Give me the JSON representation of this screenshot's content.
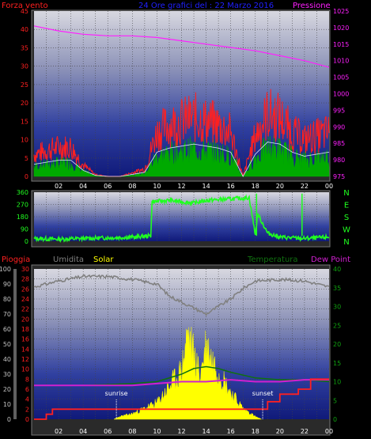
{
  "header": {
    "top_left": "Forza vento",
    "top_center": "24 Ore grafici del : 22 Marzo 2016",
    "top_right": "Pressione",
    "bottom_left": "Pioggia",
    "bottom_umidita": "Umidita",
    "bottom_solar": "Solar",
    "bottom_temp": "Temperatura",
    "bottom_dew": "Dew Point"
  },
  "colors": {
    "wind": "#ff2020",
    "pressure": "#ff20ff",
    "gust_green": "#00aa00",
    "direction": "#20ff20",
    "rain": "#ff2020",
    "humidity": "#808080",
    "solar": "#ffff00",
    "temp": "#107010",
    "dew": "#d020d0",
    "header_blue": "#2020ff"
  },
  "chart_data": [
    {
      "type": "line",
      "name": "wind_pressure",
      "categories": [
        "02",
        "04",
        "06",
        "08",
        "10",
        "12",
        "14",
        "16",
        "18",
        "20",
        "22",
        "00"
      ],
      "y_left_ticks": [
        "0",
        "5",
        "10",
        "15",
        "20",
        "25",
        "30",
        "35",
        "40",
        "45"
      ],
      "y_right_ticks": [
        "975",
        "980",
        "985",
        "990",
        "995",
        "1000",
        "1005",
        "1010",
        "1015",
        "1020",
        "1025"
      ],
      "ylim_left": [
        0,
        45
      ],
      "ylim_right": [
        975,
        1025
      ],
      "series": [
        {
          "name": "Pressione",
          "x": [
            0,
            2,
            4,
            6,
            8,
            10,
            12,
            14,
            16,
            18,
            20,
            22,
            24
          ],
          "values": [
            1020.5,
            1019,
            1018,
            1017.5,
            1017.5,
            1017,
            1016,
            1015,
            1014,
            1013,
            1011.5,
            1010,
            1008
          ]
        },
        {
          "name": "Forza vento",
          "x": [
            0,
            1,
            2,
            3,
            4,
            5,
            6,
            7,
            8,
            9,
            10,
            11,
            12,
            13,
            14,
            15,
            16,
            17,
            18,
            19,
            20,
            21,
            22,
            23,
            24
          ],
          "values": [
            6,
            7,
            8,
            8,
            3,
            0.5,
            0,
            0,
            1,
            2,
            12,
            14,
            15,
            16,
            15,
            14,
            12,
            0,
            11,
            17,
            16,
            12,
            10,
            11,
            12
          ]
        }
      ]
    },
    {
      "type": "line",
      "name": "wind_direction",
      "categories": [
        "02",
        "04",
        "06",
        "08",
        "10",
        "12",
        "14",
        "16",
        "18",
        "20",
        "22",
        "00"
      ],
      "y_left_ticks": [
        "0",
        "90",
        "180",
        "270",
        "360"
      ],
      "y_right_ticks": [
        "N",
        "W",
        "S",
        "E",
        "N"
      ],
      "ylim": [
        0,
        360
      ],
      "series": [
        {
          "name": "direction",
          "x": [
            0,
            2,
            4,
            6,
            8,
            9.5,
            9.6,
            11,
            13,
            14,
            16,
            17.5,
            18,
            18.2,
            19,
            20,
            22,
            24
          ],
          "values": [
            20,
            15,
            20,
            25,
            30,
            40,
            290,
            300,
            280,
            300,
            310,
            320,
            50,
            200,
            60,
            30,
            20,
            30
          ]
        }
      ]
    },
    {
      "type": "line",
      "name": "rain_temp_solar",
      "categories": [
        "02",
        "04",
        "06",
        "08",
        "10",
        "12",
        "14",
        "16",
        "18",
        "20",
        "22",
        "00"
      ],
      "y_far_left_ticks": [
        "0",
        "10",
        "20",
        "30",
        "40",
        "50",
        "60",
        "70",
        "80",
        "90",
        "100"
      ],
      "y_left_ticks": [
        "0",
        "2",
        "4",
        "6",
        "8",
        "10",
        "12",
        "14",
        "16",
        "18",
        "20",
        "22",
        "24",
        "26",
        "28",
        "30"
      ],
      "y_right_ticks": [
        "0",
        "5",
        "10",
        "15",
        "20",
        "25",
        "30",
        "35",
        "40"
      ],
      "annotations": [
        "sunrise",
        "sunset"
      ],
      "series": [
        {
          "name": "Umidita",
          "x": [
            0,
            2,
            4,
            6,
            8,
            10,
            11,
            12,
            13,
            14,
            15,
            16,
            17,
            18,
            20,
            22,
            24
          ],
          "values": [
            88,
            92,
            95,
            95,
            93,
            90,
            82,
            78,
            74,
            70,
            75,
            80,
            87,
            92,
            93,
            92,
            88
          ]
        },
        {
          "name": "Temperatura",
          "x": [
            0,
            4,
            8,
            10,
            12,
            13,
            14,
            15,
            16,
            18,
            20,
            22,
            24
          ],
          "values": [
            9,
            9,
            9.5,
            10,
            12,
            13.5,
            14,
            13.5,
            12.5,
            11,
            10.5,
            10.5,
            10
          ]
        },
        {
          "name": "Dew Point",
          "x": [
            0,
            4,
            8,
            10,
            12,
            14,
            16,
            18,
            20,
            22,
            24
          ],
          "values": [
            9,
            9,
            9,
            9.5,
            10,
            10,
            10.5,
            10,
            10,
            10.5,
            10.5
          ]
        },
        {
          "name": "Pioggia",
          "x": [
            0,
            0.5,
            1,
            1.5,
            6,
            10,
            18.5,
            19,
            20,
            21.5,
            22.5,
            24
          ],
          "values": [
            0,
            0,
            1,
            2,
            2,
            2,
            2,
            3.5,
            5,
            6,
            8,
            8
          ]
        },
        {
          "name": "Solar",
          "x": [
            0,
            6.5,
            7,
            8,
            9,
            10,
            11,
            12,
            12.5,
            13,
            13.5,
            14,
            14.5,
            15,
            16,
            17,
            18,
            18.5,
            24
          ],
          "values": [
            0,
            0,
            0.5,
            1,
            2,
            3,
            6,
            9,
            16,
            12,
            8,
            14,
            11,
            9,
            5,
            2,
            0.5,
            0,
            0
          ]
        }
      ]
    }
  ]
}
